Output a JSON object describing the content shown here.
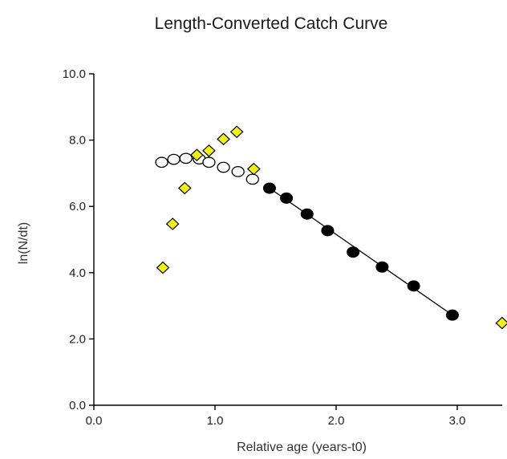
{
  "chart_data": {
    "type": "scatter",
    "title": "Length-Converted Catch Curve",
    "xlabel": "Relative age (years-t0)",
    "ylabel": "ln(N/dt)",
    "xlim": [
      0,
      3.4
    ],
    "ylim": [
      0,
      10
    ],
    "xticks": [
      0,
      1,
      2,
      3
    ],
    "xtick_labels": [
      "0.0",
      "1.0",
      "2.0",
      "3.0"
    ],
    "yticks": [
      0,
      2,
      4,
      6,
      8,
      10
    ],
    "ytick_labels": [
      "0.0",
      "2.0",
      "4.0",
      "6.0",
      "8.0",
      "10.0"
    ],
    "grid": false,
    "colors": {
      "excluded_points": "#f2ee1c",
      "fitted_points": "#000000",
      "corrected_points": "#ffffff"
    },
    "series": [
      {
        "marker": "diamond",
        "points": [
          [
            0.57,
            4.15
          ],
          [
            0.65,
            5.47
          ],
          [
            0.75,
            6.55
          ],
          [
            0.85,
            7.55
          ],
          [
            0.95,
            7.68
          ],
          [
            1.07,
            8.03
          ],
          [
            1.18,
            8.25
          ],
          [
            1.32,
            7.13
          ],
          [
            3.37,
            2.48
          ]
        ]
      },
      {
        "marker": "filled-circle",
        "points": [
          [
            1.45,
            6.55
          ],
          [
            1.59,
            6.25
          ],
          [
            1.76,
            5.77
          ],
          [
            1.93,
            5.27
          ],
          [
            2.14,
            4.62
          ],
          [
            2.38,
            4.17
          ],
          [
            2.64,
            3.6
          ],
          [
            2.96,
            2.72
          ]
        ]
      },
      {
        "marker": "open-circle",
        "points": [
          [
            0.56,
            7.33
          ],
          [
            0.66,
            7.42
          ],
          [
            0.76,
            7.45
          ],
          [
            0.87,
            7.43
          ],
          [
            0.95,
            7.33
          ],
          [
            1.07,
            7.18
          ],
          [
            1.19,
            7.05
          ],
          [
            1.31,
            6.82
          ]
        ]
      }
    ],
    "regression_line": {
      "x": [
        1.45,
        2.96
      ],
      "y": [
        6.55,
        2.72
      ]
    }
  }
}
